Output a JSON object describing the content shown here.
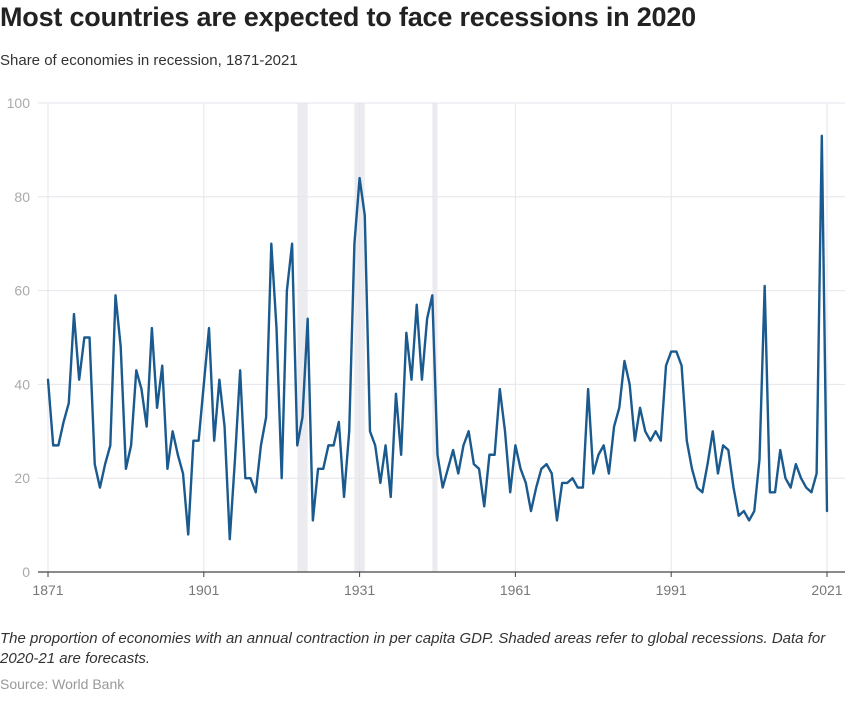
{
  "title": "Most countries are expected to face recessions in 2020",
  "subtitle": "Share of economies in recession, 1871-2021",
  "footnote": "The proportion of economies with an annual contraction in per capita GDP. Shaded areas refer to global recessions. Data for 2020-21 are forecasts.",
  "source": "Source: World Bank",
  "colors": {
    "line": "#1a5a8e",
    "shade": "#ececf0",
    "grid": "#e5e5ec",
    "baseline": "#444444"
  },
  "chart_data": {
    "type": "line",
    "title": "Most countries are expected to face recessions in 2020",
    "subtitle": "Share of economies in recession, 1871-2021",
    "xlabel": "",
    "ylabel": "",
    "xlim": [
      1871,
      2021
    ],
    "ylim": [
      0,
      100
    ],
    "x_ticks": [
      1871,
      1901,
      1931,
      1961,
      1991,
      2021
    ],
    "y_ticks": [
      0,
      20,
      40,
      60,
      80,
      100
    ],
    "grid": true,
    "shaded_periods": [
      [
        1919,
        1921
      ],
      [
        1930,
        1932
      ],
      [
        1945,
        1946
      ]
    ],
    "series": [
      {
        "values": [
          [
            1871,
            41
          ],
          [
            1872,
            27
          ],
          [
            1873,
            27
          ],
          [
            1874,
            32
          ],
          [
            1875,
            36
          ],
          [
            1876,
            55
          ],
          [
            1877,
            41
          ],
          [
            1878,
            50
          ],
          [
            1879,
            50
          ],
          [
            1880,
            23
          ],
          [
            1881,
            18
          ],
          [
            1882,
            23
          ],
          [
            1883,
            27
          ],
          [
            1884,
            59
          ],
          [
            1885,
            48
          ],
          [
            1886,
            22
          ],
          [
            1887,
            27
          ],
          [
            1888,
            43
          ],
          [
            1889,
            39
          ],
          [
            1890,
            31
          ],
          [
            1891,
            52
          ],
          [
            1892,
            35
          ],
          [
            1893,
            44
          ],
          [
            1894,
            22
          ],
          [
            1895,
            30
          ],
          [
            1896,
            25
          ],
          [
            1897,
            21
          ],
          [
            1898,
            8
          ],
          [
            1899,
            28
          ],
          [
            1900,
            28
          ],
          [
            1901,
            40
          ],
          [
            1902,
            52
          ],
          [
            1903,
            28
          ],
          [
            1904,
            41
          ],
          [
            1905,
            31
          ],
          [
            1906,
            7
          ],
          [
            1907,
            24
          ],
          [
            1908,
            43
          ],
          [
            1909,
            20
          ],
          [
            1910,
            20
          ],
          [
            1911,
            17
          ],
          [
            1912,
            27
          ],
          [
            1913,
            33
          ],
          [
            1914,
            70
          ],
          [
            1915,
            52
          ],
          [
            1916,
            20
          ],
          [
            1917,
            60
          ],
          [
            1918,
            70
          ],
          [
            1919,
            27
          ],
          [
            1920,
            33
          ],
          [
            1921,
            54
          ],
          [
            1922,
            11
          ],
          [
            1923,
            22
          ],
          [
            1924,
            22
          ],
          [
            1925,
            27
          ],
          [
            1926,
            27
          ],
          [
            1927,
            32
          ],
          [
            1928,
            16
          ],
          [
            1929,
            30
          ],
          [
            1930,
            70
          ],
          [
            1931,
            84
          ],
          [
            1932,
            76
          ],
          [
            1933,
            30
          ],
          [
            1934,
            27
          ],
          [
            1935,
            19
          ],
          [
            1936,
            27
          ],
          [
            1937,
            16
          ],
          [
            1938,
            38
          ],
          [
            1939,
            25
          ],
          [
            1940,
            51
          ],
          [
            1941,
            41
          ],
          [
            1942,
            57
          ],
          [
            1943,
            41
          ],
          [
            1944,
            54
          ],
          [
            1945,
            59
          ],
          [
            1946,
            25
          ],
          [
            1947,
            18
          ],
          [
            1948,
            22
          ],
          [
            1949,
            26
          ],
          [
            1950,
            21
          ],
          [
            1951,
            27
          ],
          [
            1952,
            30
          ],
          [
            1953,
            23
          ],
          [
            1954,
            22
          ],
          [
            1955,
            14
          ],
          [
            1956,
            25
          ],
          [
            1957,
            25
          ],
          [
            1958,
            39
          ],
          [
            1959,
            30
          ],
          [
            1960,
            17
          ],
          [
            1961,
            27
          ],
          [
            1962,
            22
          ],
          [
            1963,
            19
          ],
          [
            1964,
            13
          ],
          [
            1965,
            18
          ],
          [
            1966,
            22
          ],
          [
            1967,
            23
          ],
          [
            1968,
            21
          ],
          [
            1969,
            11
          ],
          [
            1970,
            19
          ],
          [
            1971,
            19
          ],
          [
            1972,
            20
          ],
          [
            1973,
            18
          ],
          [
            1974,
            18
          ],
          [
            1975,
            39
          ],
          [
            1976,
            21
          ],
          [
            1977,
            25
          ],
          [
            1978,
            27
          ],
          [
            1979,
            21
          ],
          [
            1980,
            31
          ],
          [
            1981,
            35
          ],
          [
            1982,
            45
          ],
          [
            1983,
            40
          ],
          [
            1984,
            28
          ],
          [
            1985,
            35
          ],
          [
            1986,
            30
          ],
          [
            1987,
            28
          ],
          [
            1988,
            30
          ],
          [
            1989,
            28
          ],
          [
            1990,
            44
          ],
          [
            1991,
            47
          ],
          [
            1992,
            47
          ],
          [
            1993,
            44
          ],
          [
            1994,
            28
          ],
          [
            1995,
            22
          ],
          [
            1996,
            18
          ],
          [
            1997,
            17
          ],
          [
            1998,
            23
          ],
          [
            1999,
            30
          ],
          [
            2000,
            21
          ],
          [
            2001,
            27
          ],
          [
            2002,
            26
          ],
          [
            2003,
            18
          ],
          [
            2004,
            12
          ],
          [
            2005,
            13
          ],
          [
            2006,
            11
          ],
          [
            2007,
            13
          ],
          [
            2008,
            24
          ],
          [
            2009,
            61
          ],
          [
            2010,
            17
          ],
          [
            2011,
            17
          ],
          [
            2012,
            26
          ],
          [
            2013,
            20
          ],
          [
            2014,
            18
          ],
          [
            2015,
            23
          ],
          [
            2016,
            20
          ],
          [
            2017,
            18
          ],
          [
            2018,
            17
          ],
          [
            2019,
            21
          ],
          [
            2020,
            93
          ],
          [
            2021,
            13
          ]
        ]
      }
    ]
  }
}
